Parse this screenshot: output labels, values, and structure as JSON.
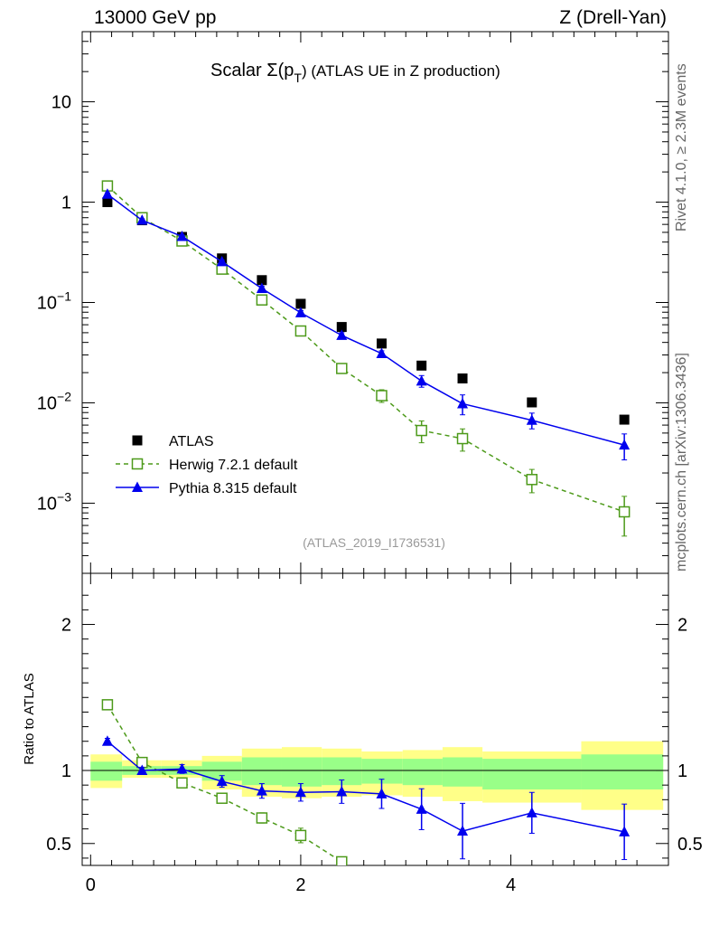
{
  "header": {
    "energy": "13000 GeV pp",
    "process": "Z (Drell-Yan)"
  },
  "side_labels": {
    "rivet": "Rivet 4.1.0, ≥ 2.3M events",
    "mcplots": "mcplots.cern.ch [arXiv:1306.3436]"
  },
  "chart_data": [
    {
      "type": "scatter",
      "panel": "main",
      "title_prefix": "Scalar Σ(p",
      "title_sub": "T",
      "title_suffix": ") (ATLAS UE in Z production)",
      "analysis": "(ATLAS_2019_I1736531)",
      "yscale": "log",
      "ylim": [
        0.0002,
        50
      ],
      "xlim": [
        -0.08,
        5.5
      ],
      "y_ticks": [
        {
          "value": 0.001,
          "base": "10",
          "exp": "−3"
        },
        {
          "value": 0.01,
          "base": "10",
          "exp": "−2"
        },
        {
          "value": 0.1,
          "base": "10",
          "exp": "−1"
        },
        {
          "value": 1,
          "base": "1",
          "exp": ""
        },
        {
          "value": 10,
          "base": "10",
          "exp": ""
        }
      ],
      "legend": [
        "ATLAS",
        "Herwig 7.2.1 default",
        "Pythia 8.315 default"
      ],
      "series": [
        {
          "name": "ATLAS",
          "color": "#000000",
          "marker": "square-filled",
          "x": [
            0.16,
            0.49,
            0.87,
            1.25,
            1.63,
            2.0,
            2.39,
            2.77,
            3.15,
            3.54,
            4.2,
            5.08
          ],
          "y": [
            1.0,
            0.66,
            0.45,
            0.275,
            0.167,
            0.097,
            0.057,
            0.039,
            0.0235,
            0.0175,
            0.0101,
            0.0068
          ]
        },
        {
          "name": "Herwig 7.2.1 default",
          "color": "#4d9a1a",
          "marker": "square-open",
          "dashed": true,
          "x": [
            0.16,
            0.49,
            0.87,
            1.25,
            1.63,
            2.0,
            2.39,
            2.77,
            3.15,
            3.54,
            4.2,
            5.08
          ],
          "y": [
            1.45,
            0.7,
            0.41,
            0.215,
            0.106,
            0.052,
            0.022,
            0.0118,
            0.0053,
            0.0044,
            0.00172,
            0.00082
          ],
          "err": [
            0.05,
            0.02,
            0.02,
            0.012,
            0.006,
            0.004,
            0.002,
            0.0017,
            0.0013,
            0.0011,
            0.00045,
            0.00035
          ]
        },
        {
          "name": "Pythia 8.315 default",
          "color": "#0000ee",
          "marker": "triangle-filled",
          "x": [
            0.16,
            0.49,
            0.87,
            1.25,
            1.63,
            2.0,
            2.39,
            2.77,
            3.15,
            3.54,
            4.2,
            5.08
          ],
          "y": [
            1.2,
            0.66,
            0.455,
            0.255,
            0.138,
            0.079,
            0.047,
            0.031,
            0.0165,
            0.0098,
            0.0067,
            0.0038
          ],
          "err": [
            0.04,
            0.02,
            0.015,
            0.01,
            0.007,
            0.004,
            0.003,
            0.002,
            0.0022,
            0.0022,
            0.0012,
            0.0011
          ]
        }
      ]
    },
    {
      "type": "scatter",
      "panel": "ratio",
      "ylabel": "Ratio to ATLAS",
      "ylim": [
        0.35,
        2.35
      ],
      "xlim": [
        -0.08,
        5.5
      ],
      "x_ticks": [
        0,
        2,
        4
      ],
      "y_ticks": [
        0.5,
        1,
        2
      ],
      "bands": {
        "edges": [
          0,
          0.3,
          0.67,
          1.06,
          1.44,
          1.82,
          2.2,
          2.58,
          2.97,
          3.35,
          3.73,
          4.67,
          5.45
        ],
        "yellow_lo": [
          0.88,
          0.95,
          0.95,
          0.87,
          0.82,
          0.81,
          0.82,
          0.83,
          0.82,
          0.79,
          0.78,
          0.73
        ],
        "yellow_hi": [
          1.11,
          1.07,
          1.07,
          1.1,
          1.15,
          1.16,
          1.15,
          1.13,
          1.14,
          1.16,
          1.13,
          1.2
        ],
        "green_lo": [
          0.93,
          0.97,
          0.97,
          0.93,
          0.9,
          0.89,
          0.9,
          0.91,
          0.9,
          0.89,
          0.87,
          0.87
        ],
        "green_hi": [
          1.06,
          1.03,
          1.03,
          1.06,
          1.09,
          1.09,
          1.09,
          1.08,
          1.08,
          1.09,
          1.08,
          1.11
        ]
      },
      "series": [
        {
          "name": "Herwig 7.2.1 default",
          "color": "#4d9a1a",
          "marker": "square-open",
          "dashed": true,
          "x": [
            0.16,
            0.49,
            0.87,
            1.25,
            1.63,
            2.0,
            2.39
          ],
          "y": [
            1.45,
            1.055,
            0.915,
            0.81,
            0.675,
            0.555,
            0.375
          ],
          "err": [
            0.0,
            0.0,
            0.01,
            0.02,
            0.035,
            0.05,
            0.0
          ]
        },
        {
          "name": "Pythia 8.315 default",
          "color": "#0000ee",
          "marker": "triangle-filled",
          "x": [
            0.16,
            0.49,
            0.87,
            1.25,
            1.63,
            2.0,
            2.39,
            2.77,
            3.15,
            3.54,
            4.2,
            5.08
          ],
          "y": [
            1.2,
            1.0,
            1.01,
            0.925,
            0.86,
            0.85,
            0.855,
            0.84,
            0.735,
            0.585,
            0.71,
            0.58
          ],
          "err": [
            0.02,
            0.02,
            0.03,
            0.04,
            0.05,
            0.06,
            0.08,
            0.1,
            0.14,
            0.19,
            0.14,
            0.19
          ]
        }
      ]
    }
  ]
}
